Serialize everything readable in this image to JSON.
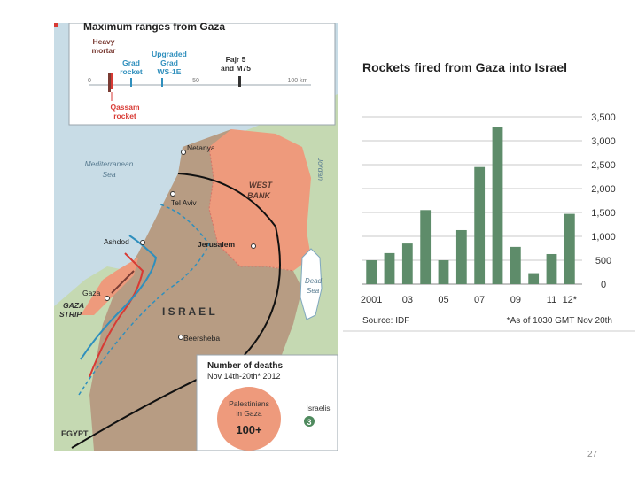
{
  "map": {
    "ranges_title": "Maximum ranges from Gaza",
    "weapons": {
      "heavy_mortar_line1": "Heavy",
      "heavy_mortar_line2": "mortar",
      "grad_line1": "Grad",
      "grad_line2": "rocket",
      "upgraded_line1": "Upgraded",
      "upgraded_line2": "Grad",
      "upgraded_line3": "WS-1E",
      "fajr_line1": "Fajr 5",
      "fajr_line2": "and M75",
      "qassam_line1": "Qassam",
      "qassam_line2": "rocket"
    },
    "scale": {
      "tick_0": "0",
      "tick_50": "50",
      "tick_100": "100 km"
    },
    "places": {
      "mediterranean_line1": "Mediterranean",
      "mediterranean_line2": "Sea",
      "netanya": "Netanya",
      "tel_aviv": "Tel Aviv",
      "ashdod": "Ashdod",
      "jerusalem": "Jerusalem",
      "gaza": "Gaza",
      "gaza_strip_line1": "GAZA",
      "gaza_strip_line2": "STRIP",
      "israel": "I S R A E L",
      "beersheba": "Beersheba",
      "west_bank_line1": "WEST",
      "west_bank_line2": "BANK",
      "jordan": "Jordan",
      "dead_sea_line1": "Dead",
      "dead_sea_line2": "Sea",
      "egypt": "EGYPT"
    },
    "deaths_box": {
      "title": "Number of deaths",
      "subtitle": "Nov 14th-20th* 2012",
      "palestinians_line1": "Palestinians",
      "palestinians_line2": "in Gaza",
      "palestinians_count": "100+",
      "israelis_label": "Israelis",
      "israelis_count": "3"
    },
    "colors": {
      "sea": "#c8dce6",
      "israel": "#b79c83",
      "west_bank": "#ee9a7c",
      "egypt": "#c5d9b2",
      "gaza": "#ee9a7c"
    }
  },
  "chart_data": {
    "type": "bar",
    "title": "Rockets fired from Gaza into Israel",
    "x": [
      2001,
      2002,
      2003,
      2004,
      2005,
      2006,
      2007,
      2008,
      2009,
      2010,
      2011,
      2012
    ],
    "values": [
      500,
      650,
      850,
      1550,
      500,
      1130,
      2450,
      3280,
      780,
      230,
      630,
      1470
    ],
    "x_tick_labels": [
      {
        "x": 2001,
        "label": "2001"
      },
      {
        "x": 2003,
        "label": "03"
      },
      {
        "x": 2005,
        "label": "05"
      },
      {
        "x": 2007,
        "label": "07"
      },
      {
        "x": 2009,
        "label": "09"
      },
      {
        "x": 2011,
        "label": "11"
      },
      {
        "x": 2012,
        "label": "12*"
      }
    ],
    "y_ticks": [
      0,
      500,
      1000,
      1500,
      2000,
      2500,
      3000,
      3500
    ],
    "y_tick_labels": [
      "0",
      "500",
      "1,000",
      "1,500",
      "2,000",
      "2,500",
      "3,000",
      "3,500"
    ],
    "ylim": [
      0,
      3500
    ],
    "y_axis_side": "right",
    "grid": true,
    "source": "Source: IDF",
    "footnote": "*As of 1030 GMT Nov 20th",
    "bar_color": "#5e8c6a"
  },
  "page_number": "27"
}
